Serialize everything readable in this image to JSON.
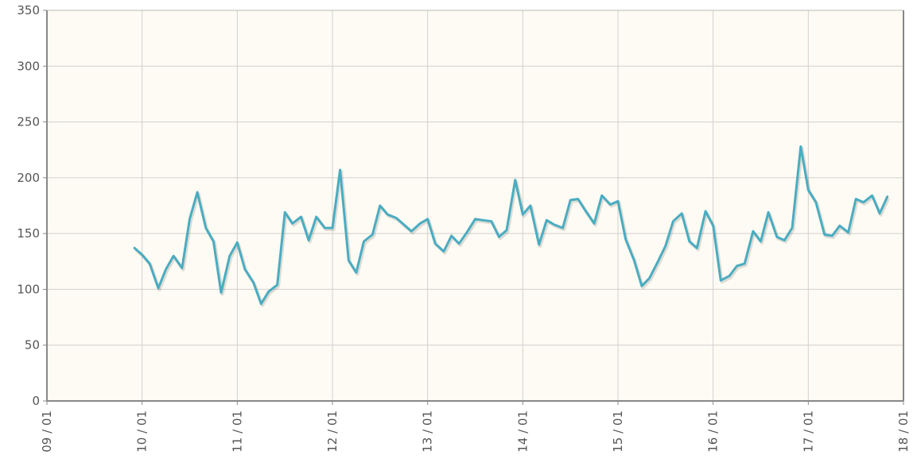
{
  "chart_data": {
    "type": "line",
    "title": "",
    "xlabel": "",
    "ylabel": "",
    "ylim": [
      0,
      350
    ],
    "yticks": [
      "0",
      "50",
      "100",
      "150",
      "200",
      "250",
      "300",
      "350"
    ],
    "xlim": [
      2009,
      2018
    ],
    "xticks": [
      "09 / 01",
      "10 / 01",
      "11 / 01",
      "12 / 01",
      "13 / 01",
      "14 / 01",
      "15 / 01",
      "16 / 01",
      "17 / 01",
      "18 / 01"
    ],
    "grid": true,
    "legend": "none",
    "colors": {
      "line": "#4aacc1",
      "plot_background": "#fdfbf3",
      "grid": "#d0d0d0",
      "axis": "#888888"
    },
    "series": [
      {
        "x": [
          2009.92,
          2010.0,
          2010.08,
          2010.17,
          2010.25,
          2010.33,
          2010.42,
          2010.5,
          2010.58,
          2010.67,
          2010.75,
          2010.83,
          2010.92,
          2011.0,
          2011.08,
          2011.17,
          2011.25,
          2011.33,
          2011.42,
          2011.5,
          2011.58,
          2011.67,
          2011.75,
          2011.83,
          2011.92,
          2012.0,
          2012.08,
          2012.17,
          2012.25,
          2012.33,
          2012.42,
          2012.5,
          2012.58,
          2012.67,
          2012.75,
          2012.83,
          2012.92,
          2013.0,
          2013.08,
          2013.17,
          2013.25,
          2013.33,
          2013.42,
          2013.5,
          2013.58,
          2013.67,
          2013.75,
          2013.83,
          2013.92,
          2014.0,
          2014.08,
          2014.17,
          2014.25,
          2014.33,
          2014.42,
          2014.5,
          2014.58,
          2014.67,
          2014.75,
          2014.83,
          2014.92,
          2015.0,
          2015.08,
          2015.17,
          2015.25,
          2015.33,
          2015.42,
          2015.5,
          2015.58,
          2015.67,
          2015.75,
          2015.83,
          2015.92,
          2016.0,
          2016.08,
          2016.17,
          2016.25,
          2016.33,
          2016.42,
          2016.5,
          2016.58,
          2016.67,
          2016.75,
          2016.83,
          2016.92,
          2017.0,
          2017.08,
          2017.17,
          2017.25,
          2017.33,
          2017.42,
          2017.5,
          2017.58,
          2017.67,
          2017.75,
          2017.83
        ],
        "values": [
          137,
          131,
          123,
          101,
          118,
          130,
          119,
          163,
          187,
          155,
          143,
          97,
          130,
          142,
          118,
          106,
          87,
          98,
          104,
          169,
          159,
          165,
          144,
          165,
          155,
          155,
          207,
          126,
          115,
          143,
          149,
          175,
          167,
          164,
          158,
          152,
          159,
          163,
          141,
          134,
          148,
          141,
          152,
          163,
          162,
          161,
          147,
          153,
          198,
          167,
          175,
          140,
          162,
          158,
          155,
          180,
          181,
          169,
          159,
          184,
          176,
          179,
          145,
          126,
          103,
          110,
          125,
          139,
          161,
          168,
          143,
          137,
          170,
          157,
          108,
          112,
          121,
          123,
          152,
          143,
          169,
          147,
          144,
          155,
          228,
          189,
          178,
          149,
          148,
          157,
          151,
          181,
          178,
          184,
          168,
          183
        ]
      }
    ]
  }
}
